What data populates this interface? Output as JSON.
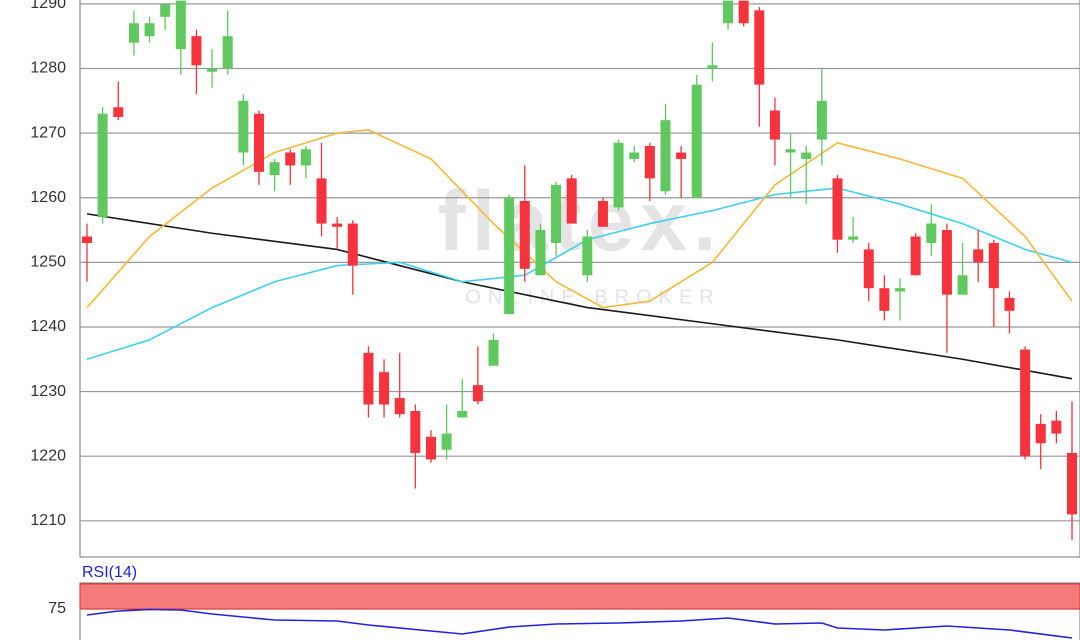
{
  "chart_data": [
    {
      "type": "candlestick",
      "watermark": "flatex.",
      "watermark_sub": "ONLINE BROKER",
      "open": [
        1254,
        1257,
        1274,
        1284,
        1285,
        1288,
        1283,
        1285,
        1279.5,
        1280,
        1267,
        1273,
        1263.5,
        1267,
        1265,
        1263,
        1256,
        1256,
        1236,
        1233,
        1229,
        1227,
        1223,
        1221,
        1226,
        1231,
        1234,
        1242,
        1259.5,
        1248,
        1253,
        1263,
        1248,
        1259.5,
        1258.5,
        1266,
        1268,
        1261,
        1267,
        1260,
        1280,
        1287,
        1290.5,
        1289,
        1273.5,
        1267,
        1266,
        1269,
        1263,
        1253.5,
        1252,
        1246,
        1245.5,
        1254,
        1253,
        1255,
        1245,
        1252,
        1253,
        1244.5,
        1236.5,
        1225,
        1225.5,
        1220.5
      ],
      "high": [
        1256,
        1274,
        1278,
        1289,
        1288,
        1290,
        1290.5,
        1286,
        1283,
        1289,
        1276,
        1273.5,
        1266,
        1267.5,
        1268,
        1268.5,
        1257,
        1256.5,
        1237,
        1235,
        1236,
        1228,
        1224,
        1228,
        1232,
        1237,
        1239,
        1260.5,
        1265,
        1256,
        1262.5,
        1263.5,
        1255,
        1260,
        1269,
        1268,
        1268.5,
        1274.5,
        1268,
        1279,
        1284,
        1290.5,
        1290.5,
        1289.5,
        1275.5,
        1270,
        1268,
        1280,
        1263.5,
        1257,
        1253,
        1248,
        1247.5,
        1254.5,
        1259,
        1256,
        1253,
        1255,
        1253.5,
        1245.5,
        1237,
        1226.5,
        1227,
        1228.5
      ],
      "low": [
        1247,
        1256,
        1272,
        1282,
        1284,
        1286,
        1279,
        1276,
        1277,
        1279,
        1265,
        1262,
        1261,
        1262,
        1263,
        1254,
        1252,
        1245,
        1226,
        1226,
        1226,
        1215,
        1219,
        1219.5,
        1226,
        1228,
        1234,
        1242,
        1247,
        1248,
        1251,
        1256,
        1247,
        1255.5,
        1258,
        1265.5,
        1259.5,
        1260.5,
        1260,
        1260,
        1278,
        1286,
        1286.5,
        1271,
        1265,
        1260,
        1259,
        1265,
        1251.5,
        1253,
        1244,
        1241,
        1241,
        1248,
        1251,
        1236,
        1245,
        1247,
        1240,
        1239,
        1219.5,
        1218,
        1222,
        1207
      ],
      "close": [
        1253,
        1273,
        1272.5,
        1287,
        1287,
        1290,
        1290.5,
        1280.5,
        1280,
        1285,
        1275,
        1264,
        1265.5,
        1265,
        1267.5,
        1256,
        1255.5,
        1249.5,
        1228,
        1228,
        1226.5,
        1220.5,
        1219.5,
        1223.5,
        1227,
        1228.5,
        1238,
        1260,
        1249,
        1255,
        1262,
        1256,
        1254,
        1255.5,
        1268.5,
        1267,
        1263,
        1272,
        1266,
        1277.5,
        1280.5,
        1290.5,
        1287,
        1277.5,
        1269,
        1267.5,
        1267,
        1275,
        1253.5,
        1254,
        1246,
        1242.5,
        1246,
        1248,
        1256,
        1245,
        1248,
        1250,
        1246,
        1242.5,
        1220,
        1222,
        1223.5,
        1211
      ],
      "up_color": "#5fc85f",
      "down_color": "#f5333c",
      "series": [
        {
          "color": "#1a1a1a",
          "x": [
            0,
            8,
            16,
            24,
            32,
            40,
            48,
            56,
            63
          ],
          "values": [
            1257.5,
            1254.5,
            1252,
            1247,
            1243,
            1240.5,
            1238,
            1235,
            1232
          ]
        },
        {
          "color": "#3fd0f0",
          "x": [
            0,
            4,
            8,
            12,
            16,
            20,
            24,
            28,
            32,
            36,
            40,
            44,
            48,
            52,
            56,
            60,
            63
          ],
          "values": [
            1235,
            1238,
            1243,
            1247,
            1249.5,
            1250,
            1247,
            1248,
            1253.5,
            1256,
            1258,
            1260.5,
            1261.5,
            1259,
            1256,
            1252,
            1250
          ]
        },
        {
          "color": "#f5b83c",
          "x": [
            0,
            4,
            8,
            12,
            16,
            18,
            22,
            26,
            30,
            33,
            36,
            40,
            44,
            48,
            52,
            56,
            60,
            63
          ],
          "values": [
            1243,
            1254,
            1261.5,
            1267,
            1270,
            1270.5,
            1266,
            1256,
            1247,
            1243,
            1244,
            1250,
            1262,
            1268.5,
            1266,
            1263,
            1254,
            1244
          ]
        }
      ],
      "ylim": [
        1204.4,
        1290.6
      ],
      "yticks": [
        1210,
        1220,
        1230,
        1240,
        1250,
        1260,
        1270,
        1280,
        1290
      ],
      "grid": true
    },
    {
      "type": "line",
      "title": "RSI(14)",
      "series": [
        {
          "color": "#2222dd",
          "x": [
            0,
            2,
            4,
            6,
            8,
            12,
            16,
            18,
            22,
            24,
            27,
            30,
            34,
            38,
            41,
            44,
            47,
            48,
            51,
            55,
            57,
            59,
            63
          ],
          "values": [
            69,
            73,
            74.5,
            74,
            70,
            64,
            63,
            59,
            53,
            50,
            57,
            60,
            61,
            63,
            66,
            60,
            61,
            56,
            54,
            58,
            56,
            54,
            46
          ]
        }
      ],
      "band": [
        75,
        100
      ],
      "band_color": "#f57a7a",
      "ylim": [
        44,
        100
      ],
      "yticks": [
        75
      ],
      "grid": true
    }
  ]
}
